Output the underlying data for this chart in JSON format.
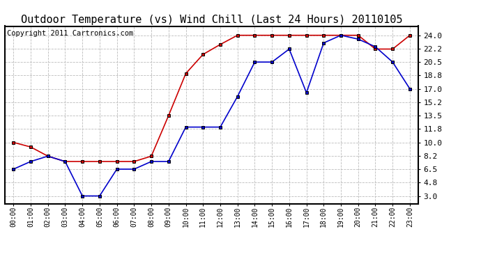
{
  "title": "Outdoor Temperature (vs) Wind Chill (Last 24 Hours) 20110105",
  "copyright": "Copyright 2011 Cartronics.com",
  "x_labels": [
    "00:00",
    "01:00",
    "02:00",
    "03:00",
    "04:00",
    "05:00",
    "06:00",
    "07:00",
    "08:00",
    "09:00",
    "10:00",
    "11:00",
    "12:00",
    "13:00",
    "14:00",
    "15:00",
    "16:00",
    "17:00",
    "18:00",
    "19:00",
    "20:00",
    "21:00",
    "22:00",
    "23:00"
  ],
  "temp_data": [
    6.5,
    7.5,
    8.2,
    7.5,
    3.0,
    3.0,
    6.5,
    6.5,
    7.5,
    7.5,
    12.0,
    12.0,
    12.0,
    16.0,
    20.5,
    20.5,
    22.2,
    16.5,
    23.0,
    24.0,
    23.5,
    22.5,
    20.5,
    17.0
  ],
  "wind_chill_data": [
    10.0,
    9.4,
    8.2,
    7.5,
    7.5,
    7.5,
    7.5,
    7.5,
    8.2,
    13.5,
    19.0,
    21.5,
    22.8,
    24.0,
    24.0,
    24.0,
    24.0,
    24.0,
    24.0,
    24.0,
    24.0,
    22.2,
    22.2,
    24.0
  ],
  "yticks": [
    3.0,
    4.8,
    6.5,
    8.2,
    10.0,
    11.8,
    13.5,
    15.2,
    17.0,
    18.8,
    20.5,
    22.2,
    24.0
  ],
  "ylim": [
    2.0,
    25.2
  ],
  "temp_color": "#0000cc",
  "wind_chill_color": "#cc0000",
  "bg_color": "#ffffff",
  "grid_color": "#bbbbbb",
  "title_fontsize": 11,
  "copyright_fontsize": 7.5
}
